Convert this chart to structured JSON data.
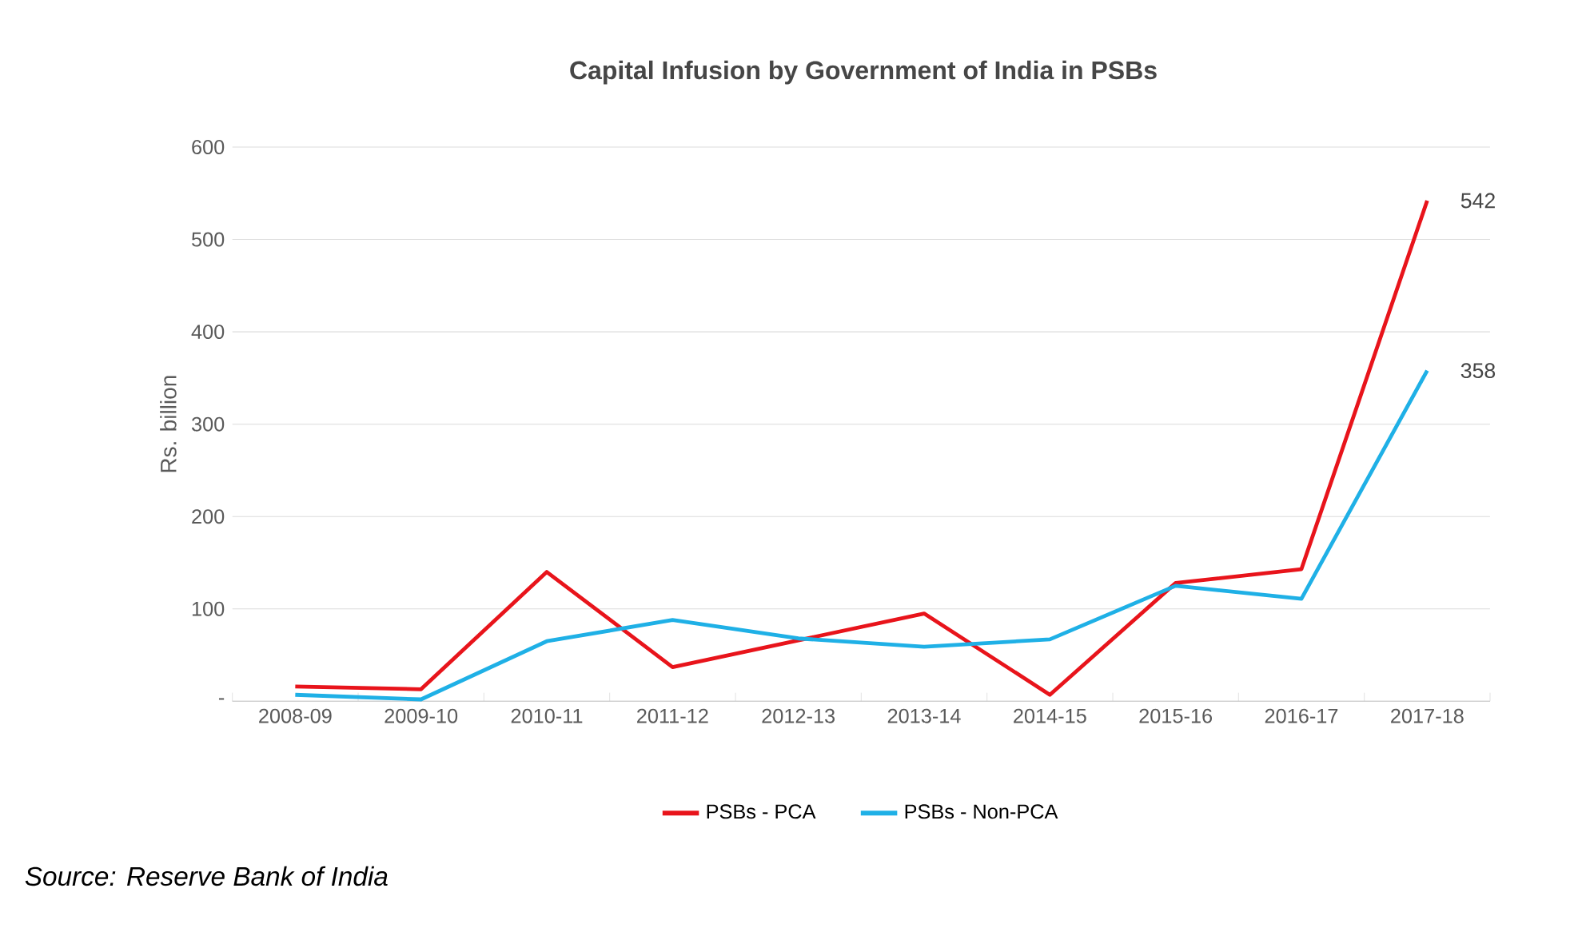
{
  "chart_data": {
    "type": "line",
    "title": "Capital Infusion by Government of India in PSBs",
    "ylabel": "Rs. billion",
    "categories": [
      "2008-09",
      "2009-10",
      "2010-11",
      "2011-12",
      "2012-13",
      "2013-14",
      "2014-15",
      "2015-16",
      "2016-17",
      "2017-18"
    ],
    "series": [
      {
        "name": "PSBs - PCA",
        "color": "#e8141b",
        "values": [
          16,
          13,
          140,
          37,
          66,
          95,
          7,
          128,
          143,
          542
        ],
        "value_labels": [
          null,
          null,
          null,
          null,
          null,
          null,
          null,
          null,
          null,
          "542"
        ]
      },
      {
        "name": "PSBs - Non-PCA",
        "color": "#1fb0e6",
        "values": [
          7,
          2,
          65,
          88,
          68,
          59,
          67,
          125,
          111,
          358
        ],
        "value_labels": [
          null,
          null,
          null,
          null,
          null,
          null,
          null,
          null,
          null,
          "358"
        ]
      }
    ],
    "ylim": [
      0,
      600
    ],
    "yticks": [
      {
        "value": 0,
        "label": "-"
      },
      100,
      200,
      300,
      400,
      500,
      600
    ],
    "grid": "y",
    "legend": "bottom",
    "marker": "none",
    "line_style": "solid",
    "annotations": [
      "*Source: Reserve Bank of India*"
    ]
  }
}
